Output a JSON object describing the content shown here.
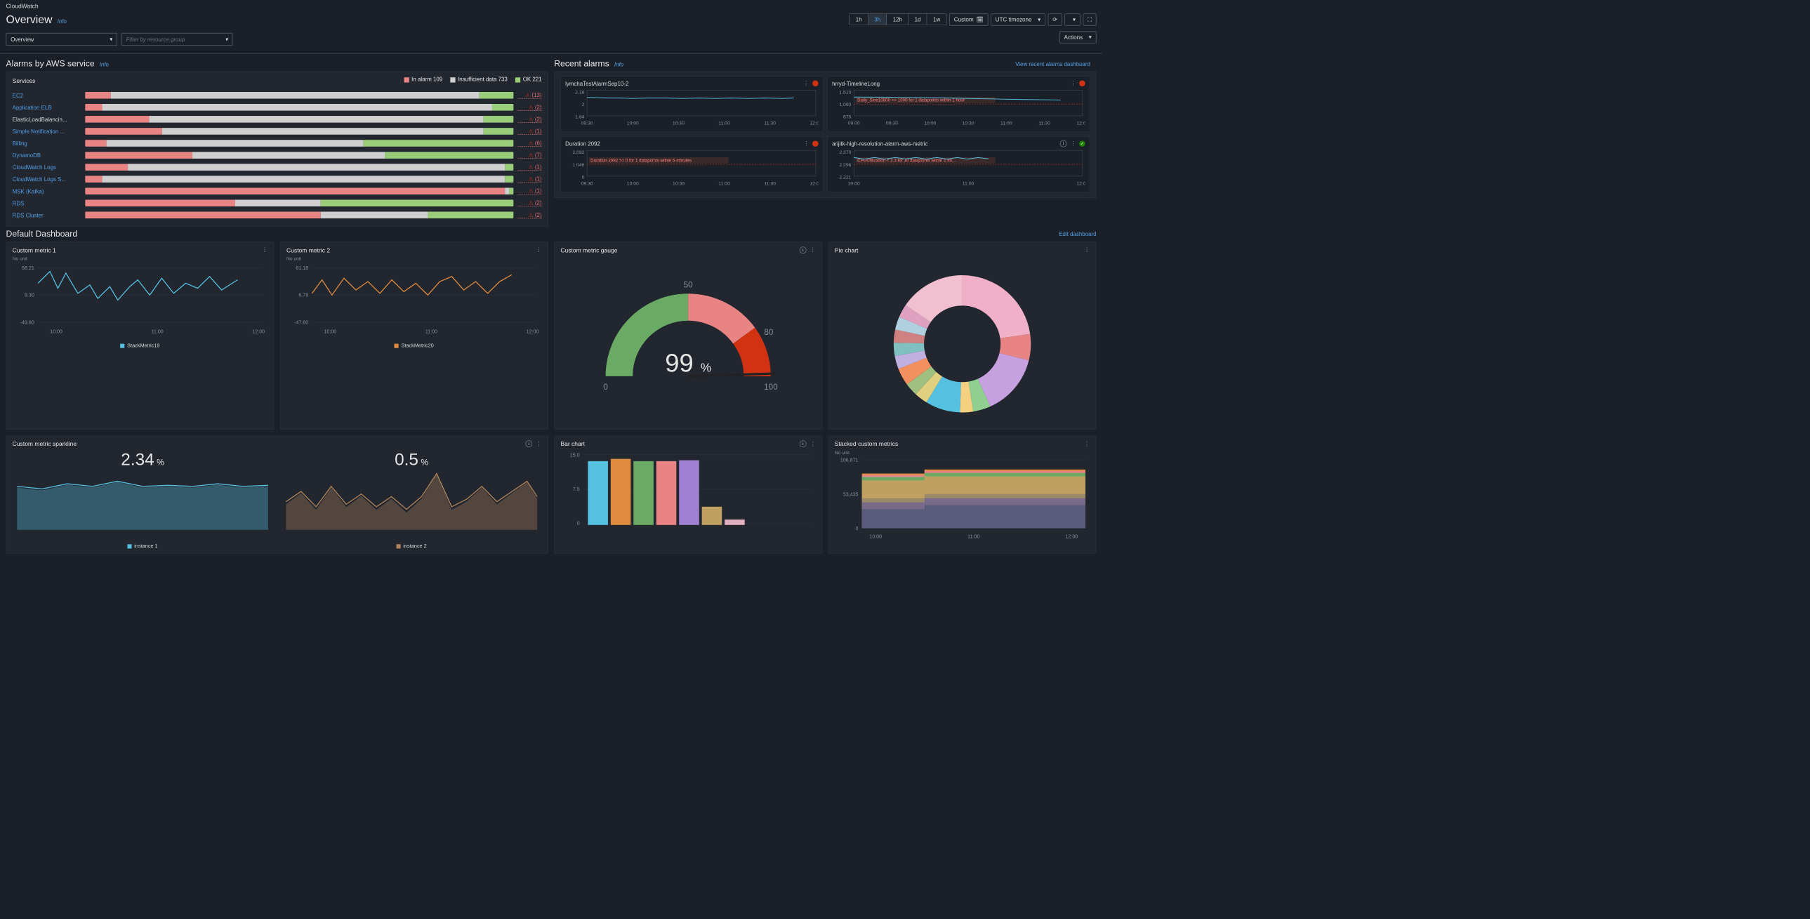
{
  "breadcrumb": "CloudWatch",
  "page_title": "Overview",
  "info_label": "Info",
  "overview_select": "Overview",
  "filter_placeholder": "Filter by resource group",
  "time_ranges": [
    "1h",
    "3h",
    "12h",
    "1d",
    "1w"
  ],
  "time_active": "3h",
  "custom_label": "Custom",
  "tz_label": "UTC timezone",
  "actions_label": "Actions",
  "alarms_section_title": "Alarms by AWS service",
  "recent_alarms_title": "Recent alarms",
  "view_recent_link": "View recent alarms dashboard",
  "services_header": "Services",
  "legend": {
    "in_alarm": {
      "label": "In alarm 109",
      "color": "#e88484"
    },
    "insufficient": {
      "label": "Insufficient data 733",
      "color": "#cfcfcf"
    },
    "ok": {
      "label": "OK 221",
      "color": "#9acd7a"
    }
  },
  "bar_colors": {
    "alarm": "#e88484",
    "insuff": "#cfcfcf",
    "ok": "#9acd7a"
  },
  "services": [
    {
      "name": "EC2",
      "link": true,
      "count": 13,
      "seg": [
        0.06,
        0.86,
        0.08
      ]
    },
    {
      "name": "Application ELB",
      "link": true,
      "count": 2,
      "seg": [
        0.04,
        0.91,
        0.05
      ]
    },
    {
      "name": "ElasticLoadBalancin...",
      "link": false,
      "count": 2,
      "seg": [
        0.15,
        0.78,
        0.07
      ]
    },
    {
      "name": "Simple Notification ...",
      "link": true,
      "count": 1,
      "seg": [
        0.18,
        0.75,
        0.07
      ]
    },
    {
      "name": "Billing",
      "link": true,
      "count": 6,
      "seg": [
        0.05,
        0.6,
        0.35
      ]
    },
    {
      "name": "DynamoDB",
      "link": true,
      "count": 7,
      "seg": [
        0.25,
        0.45,
        0.3
      ]
    },
    {
      "name": "CloudWatch Logs",
      "link": true,
      "count": 1,
      "seg": [
        0.1,
        0.88,
        0.02
      ]
    },
    {
      "name": "CloudWatch Logs S...",
      "link": true,
      "count": 1,
      "seg": [
        0.04,
        0.94,
        0.02
      ]
    },
    {
      "name": "MSK (Kafka)",
      "link": true,
      "count": 1,
      "seg": [
        0.98,
        0.01,
        0.01
      ]
    },
    {
      "name": "RDS",
      "link": true,
      "count": 2,
      "seg": [
        0.35,
        0.2,
        0.45
      ]
    },
    {
      "name": "RDS Cluster",
      "link": true,
      "count": 2,
      "seg": [
        0.55,
        0.25,
        0.2
      ]
    }
  ],
  "recent": [
    {
      "title": "lymchaTestAlarmSep10-2",
      "status": "err",
      "yticks": [
        "2.16",
        "2",
        "1.84"
      ],
      "xticks": [
        "09:30",
        "10:00",
        "10:30",
        "11:00",
        "11:30",
        "12:00"
      ],
      "line": {
        "color": "#56c0e0",
        "pts": [
          [
            0,
            0.2
          ],
          [
            0.1,
            0.4
          ],
          [
            0.16,
            0.4
          ],
          [
            0.22,
            0.5
          ],
          [
            0.3,
            0.4
          ],
          [
            0.38,
            0.4
          ],
          [
            0.46,
            0.5
          ],
          [
            0.54,
            0.4
          ],
          [
            0.62,
            0.5
          ],
          [
            0.7,
            0.4
          ],
          [
            0.78,
            0.5
          ],
          [
            0.86,
            0.4
          ],
          [
            0.94,
            0.5
          ],
          [
            1,
            0.4
          ]
        ]
      }
    },
    {
      "title": "hrryd-TimelineLong",
      "status": "err",
      "yticks": [
        "1,510",
        "1,093",
        "675"
      ],
      "xticks": [
        "09:00",
        "09:30",
        "10:00",
        "10:30",
        "11:00",
        "11:30",
        "12:00"
      ],
      "anno": "Daily_Sine10800 >= 1000 for 1 datapoints within 1 hour",
      "line": {
        "color": "#56c0e0",
        "pts": [
          [
            0,
            0.15
          ],
          [
            0.2,
            0.2
          ],
          [
            0.4,
            0.35
          ],
          [
            0.6,
            0.55
          ],
          [
            0.8,
            0.75
          ],
          [
            1,
            0.9
          ]
        ]
      }
    },
    {
      "title": "Duration 2092",
      "status": "err",
      "yticks": [
        "2,092",
        "1,046",
        "0"
      ],
      "xticks": [
        "09:30",
        "10:00",
        "10:30",
        "11:00",
        "11:30",
        "12:00"
      ],
      "anno": "Duration 2092 >= 0 for 1 datapoints within 5 minutes",
      "line": {
        "color": "#56c0e0",
        "pts": [
          [
            0.1,
            0.05
          ],
          [
            0.1,
            0.05
          ]
        ]
      }
    },
    {
      "title": "arijitk-high-resolution-alarm-aws-metric",
      "status": "ok",
      "info": true,
      "yticks": [
        "2.370",
        "2.296",
        "2.221"
      ],
      "xticks": [
        "10:00",
        "11:00",
        "12:00"
      ],
      "anno": "CPUUtilization < 2.3 for 10 datapoints within 1 mi...",
      "line": {
        "color": "#56c0e0",
        "pts": [
          [
            0,
            0.2
          ],
          [
            0.05,
            0.6
          ],
          [
            0.1,
            0.2
          ],
          [
            0.15,
            0.6
          ],
          [
            0.2,
            0.2
          ],
          [
            0.25,
            0.55
          ],
          [
            0.3,
            0.2
          ],
          [
            0.35,
            0.6
          ],
          [
            0.4,
            0.2
          ],
          [
            0.45,
            0.6
          ],
          [
            0.5,
            0.2
          ],
          [
            0.55,
            0.6
          ],
          [
            0.6,
            0.2
          ],
          [
            0.65,
            0.5
          ]
        ]
      }
    }
  ],
  "default_dash_title": "Default Dashboard",
  "edit_dash_link": "Edit dashboard",
  "cards": {
    "m1": {
      "title": "Custom metric 1",
      "nounit": "No unit",
      "yticks": [
        "68.21",
        "9.30",
        "-49.60"
      ],
      "xticks": [
        "10:00",
        "11:00",
        "12:00"
      ],
      "line_color": "#56c0e0",
      "legend": "StackMetric19",
      "pts": [
        [
          0,
          0.4
        ],
        [
          0.06,
          0.05
        ],
        [
          0.1,
          0.55
        ],
        [
          0.14,
          0.1
        ],
        [
          0.2,
          0.7
        ],
        [
          0.26,
          0.45
        ],
        [
          0.3,
          0.85
        ],
        [
          0.36,
          0.5
        ],
        [
          0.4,
          0.9
        ],
        [
          0.46,
          0.5
        ],
        [
          0.5,
          0.3
        ],
        [
          0.56,
          0.75
        ],
        [
          0.62,
          0.25
        ],
        [
          0.68,
          0.7
        ],
        [
          0.74,
          0.4
        ],
        [
          0.8,
          0.55
        ],
        [
          0.86,
          0.2
        ],
        [
          0.92,
          0.6
        ],
        [
          1,
          0.3
        ]
      ]
    },
    "m2": {
      "title": "Custom metric 2",
      "nounit": "No unit",
      "yticks": [
        "61.18",
        "6.79",
        "-47.60"
      ],
      "xticks": [
        "10:00",
        "11:00",
        "12:00"
      ],
      "line_color": "#e08c3e",
      "legend": "StackMetric20",
      "pts": [
        [
          0,
          0.7
        ],
        [
          0.05,
          0.3
        ],
        [
          0.1,
          0.75
        ],
        [
          0.16,
          0.25
        ],
        [
          0.22,
          0.6
        ],
        [
          0.28,
          0.35
        ],
        [
          0.34,
          0.7
        ],
        [
          0.4,
          0.3
        ],
        [
          0.46,
          0.65
        ],
        [
          0.52,
          0.4
        ],
        [
          0.58,
          0.75
        ],
        [
          0.64,
          0.35
        ],
        [
          0.7,
          0.2
        ],
        [
          0.76,
          0.6
        ],
        [
          0.82,
          0.35
        ],
        [
          0.88,
          0.7
        ],
        [
          0.94,
          0.35
        ],
        [
          1,
          0.15
        ]
      ]
    },
    "gauge": {
      "title": "Custom metric gauge",
      "value": "99",
      "unit": "%",
      "min": "0",
      "max": "100",
      "mid1": "50",
      "mid2": "80",
      "arc_colors": [
        "#6aaa64",
        "#e88484",
        "#d13212"
      ]
    },
    "pie": {
      "title": "Pie chart",
      "slices": [
        {
          "c": "#f0b0c8",
          "v": 22
        },
        {
          "c": "#e88484",
          "v": 6
        },
        {
          "c": "#c7a0e0",
          "v": 14
        },
        {
          "c": "#8fcf8f",
          "v": 4
        },
        {
          "c": "#f5d080",
          "v": 3
        },
        {
          "c": "#56c0e0",
          "v": 8
        },
        {
          "c": "#e0d080",
          "v": 3
        },
        {
          "c": "#a0c080",
          "v": 3
        },
        {
          "c": "#f29060",
          "v": 4
        },
        {
          "c": "#c0b0e0",
          "v": 3
        },
        {
          "c": "#80c0c0",
          "v": 3
        },
        {
          "c": "#d08080",
          "v": 3
        },
        {
          "c": "#b0d0e0",
          "v": 3
        },
        {
          "c": "#e0a0c0",
          "v": 3
        },
        {
          "c": "#f0c0d0",
          "v": 15
        }
      ]
    },
    "spark1": {
      "title": "Custom metric sparkline",
      "value": "2.34",
      "unit": "%",
      "legend": "instance 1",
      "color": "#56c0e0",
      "pts": [
        [
          0,
          0.3
        ],
        [
          0.1,
          0.35
        ],
        [
          0.2,
          0.25
        ],
        [
          0.3,
          0.3
        ],
        [
          0.4,
          0.2
        ],
        [
          0.5,
          0.3
        ],
        [
          0.6,
          0.28
        ],
        [
          0.7,
          0.3
        ],
        [
          0.8,
          0.25
        ],
        [
          0.9,
          0.3
        ],
        [
          1,
          0.28
        ]
      ]
    },
    "spark2": {
      "value": "0.5",
      "unit": "%",
      "legend": "instance 2",
      "color": "#b0845c",
      "pts": [
        [
          0,
          0.6
        ],
        [
          0.06,
          0.4
        ],
        [
          0.12,
          0.7
        ],
        [
          0.18,
          0.3
        ],
        [
          0.24,
          0.65
        ],
        [
          0.3,
          0.45
        ],
        [
          0.36,
          0.7
        ],
        [
          0.42,
          0.5
        ],
        [
          0.48,
          0.75
        ],
        [
          0.54,
          0.5
        ],
        [
          0.6,
          0.05
        ],
        [
          0.66,
          0.7
        ],
        [
          0.72,
          0.55
        ],
        [
          0.78,
          0.3
        ],
        [
          0.84,
          0.6
        ],
        [
          0.9,
          0.4
        ],
        [
          0.96,
          0.2
        ],
        [
          1,
          0.5
        ]
      ]
    },
    "bar": {
      "title": "Bar chart",
      "yticks": [
        "15.0",
        "7.5",
        "0"
      ],
      "bars": [
        {
          "c": "#56c0e0",
          "v": 14
        },
        {
          "c": "#e08c3e",
          "v": 14.5
        },
        {
          "c": "#6aaa64",
          "v": 14
        },
        {
          "c": "#e88484",
          "v": 14
        },
        {
          "c": "#a080d0",
          "v": 14.2
        },
        {
          "c": "#c0a060",
          "v": 4
        },
        {
          "c": "#e0b0c0",
          "v": 1.2
        }
      ]
    },
    "stacked": {
      "title": "Stacked custom metrics",
      "nounit": "No unit",
      "yticks": [
        "106,871",
        "53,435",
        "0"
      ],
      "xticks": [
        "10:00",
        "11:00",
        "12:00"
      ],
      "layers": [
        {
          "c": "#5a5a7a",
          "base": 0.72
        },
        {
          "c": "#7a6a8a",
          "base": 0.62
        },
        {
          "c": "#9a8a6a",
          "base": 0.56
        },
        {
          "c": "#c0a060",
          "base": 0.3
        },
        {
          "c": "#6aaa64",
          "base": 0.25
        },
        {
          "c": "#e88484",
          "base": 0.22
        },
        {
          "c": "#e08c3e",
          "base": 0.2
        }
      ],
      "step_x": 0.28
    }
  }
}
